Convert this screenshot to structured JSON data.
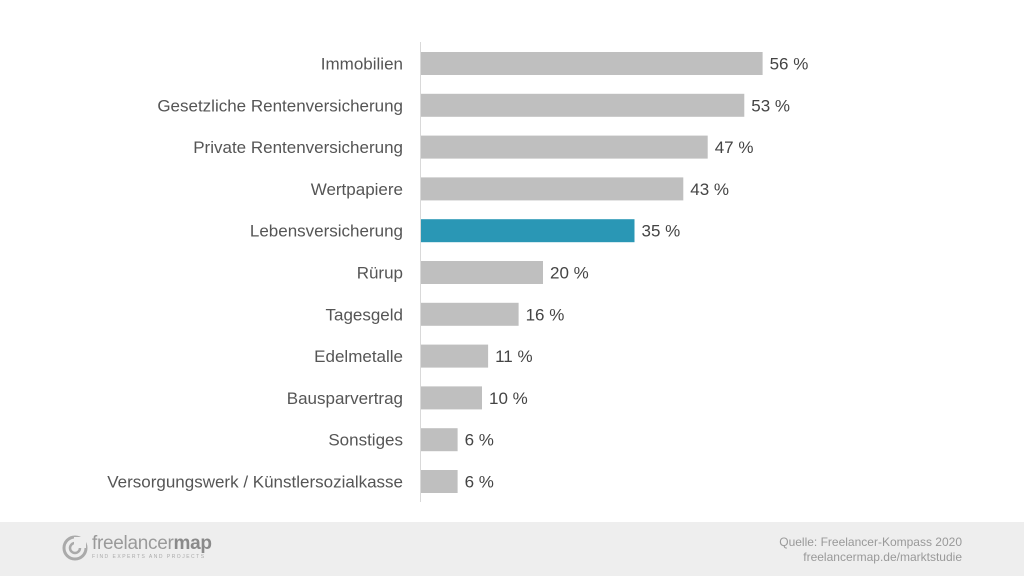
{
  "chart_data": {
    "type": "bar",
    "orientation": "horizontal",
    "categories": [
      "Immobilien",
      "Gesetzliche Rentenversicherung",
      "Private Rentenversicherung",
      "Wertpapiere",
      "Lebensversicherung",
      "Rürup",
      "Tagesgeld",
      "Edelmetalle",
      "Bausparvertrag",
      "Sonstiges",
      "Versorgungswerk / Künstlersozialkasse"
    ],
    "values": [
      56,
      53,
      47,
      43,
      35,
      20,
      16,
      11,
      10,
      6,
      6
    ],
    "value_labels": [
      "56 %",
      "53 %",
      "47 %",
      "43 %",
      "35 %",
      "20 %",
      "16 %",
      "11 %",
      "10 %",
      "6 %",
      "6 %"
    ],
    "highlight_category": "Lebensversicherung",
    "xlim": [
      0,
      100
    ],
    "grid": false,
    "legend": "none",
    "colors": {
      "bar": "#bfbfbf",
      "highlight": "#2a97b5",
      "axis": "#d9d9d9"
    }
  },
  "footer": {
    "logo_name_prefix": "freelancer",
    "logo_name_suffix": "map",
    "logo_tagline": "FIND EXPERTS AND PROJECTS",
    "source_line": "Quelle: Freelancer-Kompass 2020",
    "url_line": "freelancermap.de/marktstudie",
    "colors": {
      "background": "#eeeeee",
      "text": "#999999"
    }
  }
}
